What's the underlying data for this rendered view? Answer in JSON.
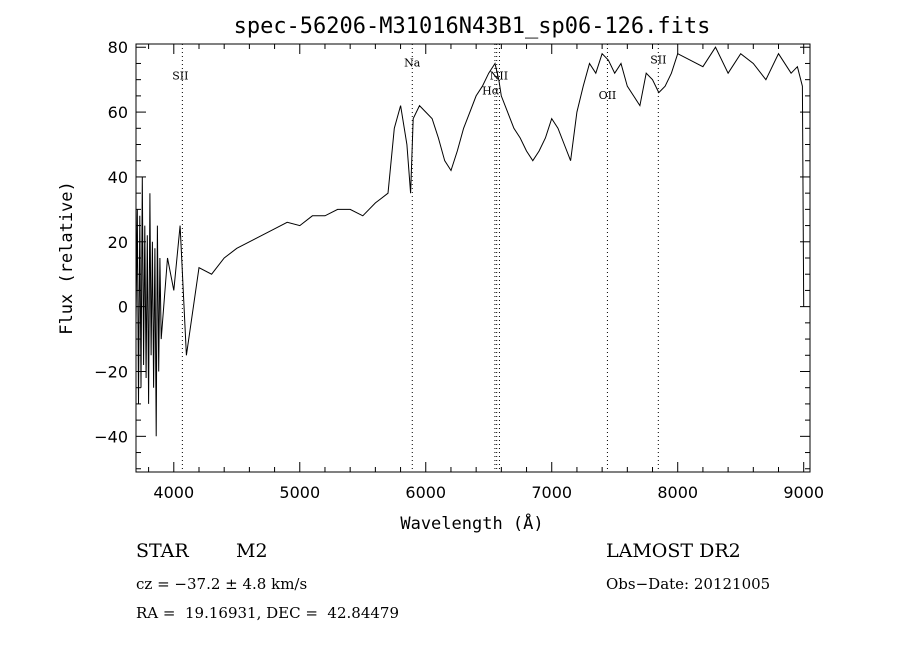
{
  "chart_data": {
    "type": "line",
    "title": "spec-56206-M31016N43B1_sp06-126.fits",
    "xlabel": "Wavelength (Å)",
    "ylabel": "Flux (relative)",
    "xlim": [
      3700,
      9050
    ],
    "ylim": [
      -51,
      81
    ],
    "xticks": [
      4000,
      5000,
      6000,
      7000,
      8000,
      9000
    ],
    "yticks": [
      -40,
      -20,
      0,
      20,
      40,
      60,
      80
    ],
    "grid": false,
    "line_color": "#000000",
    "series": [
      {
        "x": [
          3700,
          3710,
          3720,
          3730,
          3740,
          3750,
          3760,
          3770,
          3780,
          3790,
          3800,
          3810,
          3820,
          3830,
          3840,
          3850,
          3860,
          3870,
          3880,
          3890,
          3900,
          3950,
          4000,
          4050,
          4100,
          4200,
          4300,
          4400,
          4500,
          4600,
          4700,
          4800,
          4900,
          5000,
          5100,
          5200,
          5300,
          5400,
          5500,
          5600,
          5700,
          5750,
          5800,
          5850,
          5880,
          5900,
          5950,
          6000,
          6050,
          6100,
          6150,
          6200,
          6250,
          6300,
          6350,
          6400,
          6450,
          6500,
          6550,
          6580,
          6600,
          6650,
          6700,
          6750,
          6800,
          6850,
          6900,
          6950,
          7000,
          7050,
          7100,
          7150,
          7200,
          7250,
          7300,
          7350,
          7400,
          7450,
          7500,
          7550,
          7600,
          7650,
          7700,
          7750,
          7800,
          7850,
          7900,
          7950,
          8000,
          8100,
          8200,
          8300,
          8400,
          8500,
          8600,
          8700,
          8800,
          8900,
          8950,
          8990,
          9000
        ],
        "y": [
          -5,
          30,
          -30,
          28,
          -25,
          40,
          -18,
          25,
          -22,
          22,
          -30,
          35,
          -15,
          20,
          -25,
          18,
          -40,
          25,
          -20,
          15,
          -10,
          15,
          5,
          25,
          -15,
          12,
          10,
          15,
          18,
          20,
          22,
          24,
          26,
          25,
          28,
          28,
          30,
          30,
          28,
          32,
          35,
          55,
          62,
          50,
          35,
          58,
          62,
          60,
          58,
          52,
          45,
          42,
          48,
          55,
          60,
          65,
          68,
          72,
          75,
          70,
          65,
          60,
          55,
          52,
          48,
          45,
          48,
          52,
          58,
          55,
          50,
          45,
          60,
          68,
          75,
          72,
          78,
          76,
          72,
          75,
          68,
          65,
          62,
          72,
          70,
          66,
          68,
          72,
          78,
          76,
          74,
          80,
          72,
          78,
          75,
          70,
          78,
          72,
          74,
          68,
          0
        ]
      }
    ],
    "lines": [
      {
        "label": "SII",
        "x": 4068,
        "ytext": 70,
        "xoff": -2
      },
      {
        "label": "Na",
        "x": 5893,
        "ytext": 74,
        "xoff": 0
      },
      {
        "label": "NII",
        "x": 6549,
        "ytext": 70,
        "xoff": 4
      },
      {
        "label": "Hα",
        "x": 6563,
        "ytext": 65.5,
        "xoff": -6
      },
      {
        "label": "NII",
        "x": 6585,
        "ytext": 0,
        "xoff": 0,
        "hidden": true
      },
      {
        "label": "OII",
        "x": 7442,
        "ytext": 64,
        "xoff": 0
      },
      {
        "label": "SII",
        "x": 7846,
        "ytext": 75,
        "xoff": 0
      }
    ]
  },
  "info": {
    "object_class": "STAR",
    "subclass": "M2",
    "survey": "LAMOST DR2",
    "redshift_line": "cz = −37.2 ± 4.8 km/s",
    "obs_date": "Obs−Date: 20121005",
    "coords": "RA =  19.16931, DEC =  42.84479"
  }
}
